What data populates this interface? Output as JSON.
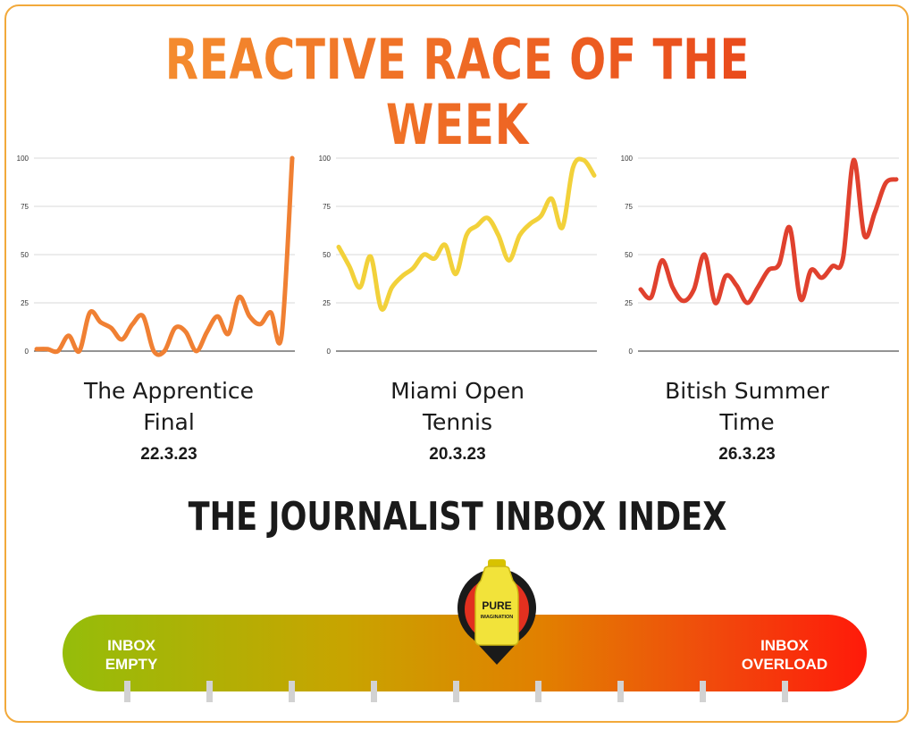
{
  "title": "REACTIVE RACE OF THE WEEK",
  "index_title": "THE JOURNALIST INBOX INDEX",
  "gauge": {
    "left_label": [
      "INBOX",
      "EMPTY"
    ],
    "right_label": [
      "INBOX",
      "OVERLOAD"
    ],
    "marker_position": 0.5,
    "tick_count": 9,
    "product_text": [
      "PURE",
      "IMAGINATION"
    ],
    "gradient_colors": [
      "#95bd0a",
      "#c8a400",
      "#e27f00",
      "#f04c0c",
      "#ff1a0a"
    ]
  },
  "charts": [
    {
      "name_lines": [
        "The Apprentice",
        "Final"
      ],
      "date": "22.3.23"
    },
    {
      "name_lines": [
        "Miami Open",
        "Tennis"
      ],
      "date": "20.3.23"
    },
    {
      "name_lines": [
        "Bitish Summer",
        "Time"
      ],
      "date": "26.3.23"
    }
  ],
  "chart_data": [
    {
      "type": "line",
      "title": "The Apprentice Final",
      "ylim": [
        0,
        100
      ],
      "yticks": [
        "0",
        "25",
        "50",
        "75",
        "100"
      ],
      "grid": true,
      "color": "#f08033",
      "series": [
        {
          "values": [
            1,
            1,
            0,
            8,
            0,
            20,
            15,
            12,
            6,
            14,
            18,
            0,
            0,
            12,
            10,
            0,
            10,
            18,
            9,
            28,
            18,
            14,
            20,
            8,
            100
          ]
        }
      ]
    },
    {
      "type": "line",
      "title": "Miami Open Tennis",
      "ylim": [
        0,
        100
      ],
      "yticks": [
        "0",
        "25",
        "50",
        "75",
        "100"
      ],
      "grid": true,
      "color": "#f2d13a",
      "series": [
        {
          "values": [
            54,
            44,
            33,
            49,
            22,
            33,
            39,
            43,
            50,
            48,
            55,
            40,
            60,
            65,
            69,
            60,
            47,
            60,
            66,
            70,
            79,
            64,
            95,
            99,
            91
          ]
        }
      ]
    },
    {
      "type": "line",
      "title": "Bitish Summer Time",
      "ylim": [
        0,
        100
      ],
      "yticks": [
        "0",
        "25",
        "50",
        "75",
        "100"
      ],
      "grid": true,
      "color": "#e0412e",
      "series": [
        {
          "values": [
            32,
            28,
            47,
            33,
            26,
            32,
            50,
            25,
            39,
            34,
            25,
            33,
            42,
            45,
            64,
            27,
            42,
            38,
            44,
            48,
            99,
            60,
            72,
            87,
            89
          ]
        }
      ]
    }
  ]
}
